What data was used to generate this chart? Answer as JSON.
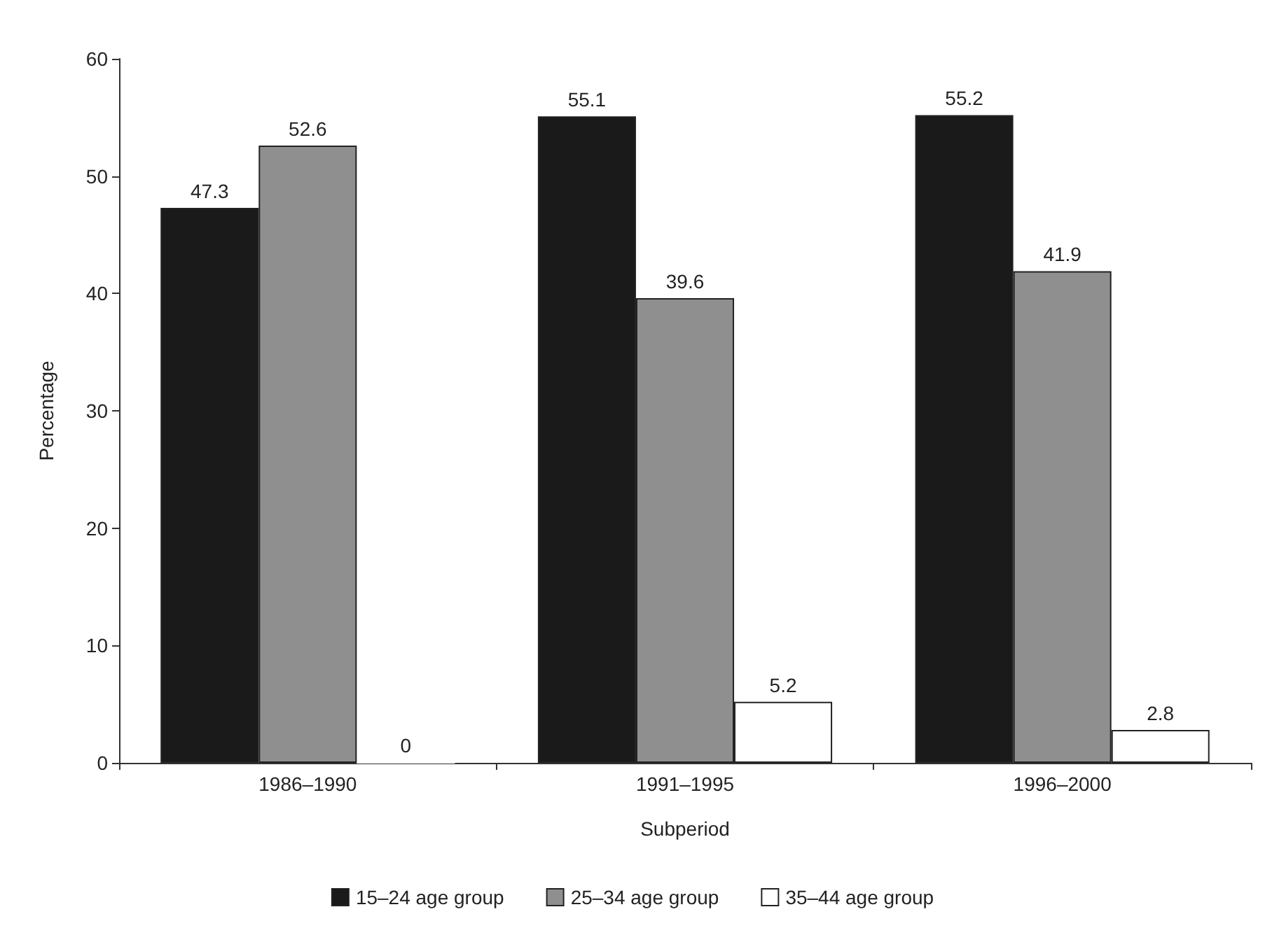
{
  "chart_data": {
    "type": "bar",
    "xlabel": "Subperiod",
    "ylabel": "Percentage",
    "categories": [
      "1986–1990",
      "1991–1995",
      "1996–2000"
    ],
    "series": [
      {
        "name": "15–24 age group",
        "color": "#1a1a1a",
        "values": [
          47.3,
          55.1,
          55.2
        ]
      },
      {
        "name": "25–34 age group",
        "color": "#8f8f8f",
        "values": [
          52.6,
          39.6,
          41.9
        ]
      },
      {
        "name": "35–44 age group",
        "color": "#ffffff",
        "values": [
          0,
          5.2,
          2.8
        ]
      }
    ],
    "ylim": [
      0,
      60
    ],
    "yticks": [
      0,
      10,
      20,
      30,
      40,
      50,
      60
    ],
    "data_labels": true,
    "grid": false,
    "legend": "bottom"
  }
}
